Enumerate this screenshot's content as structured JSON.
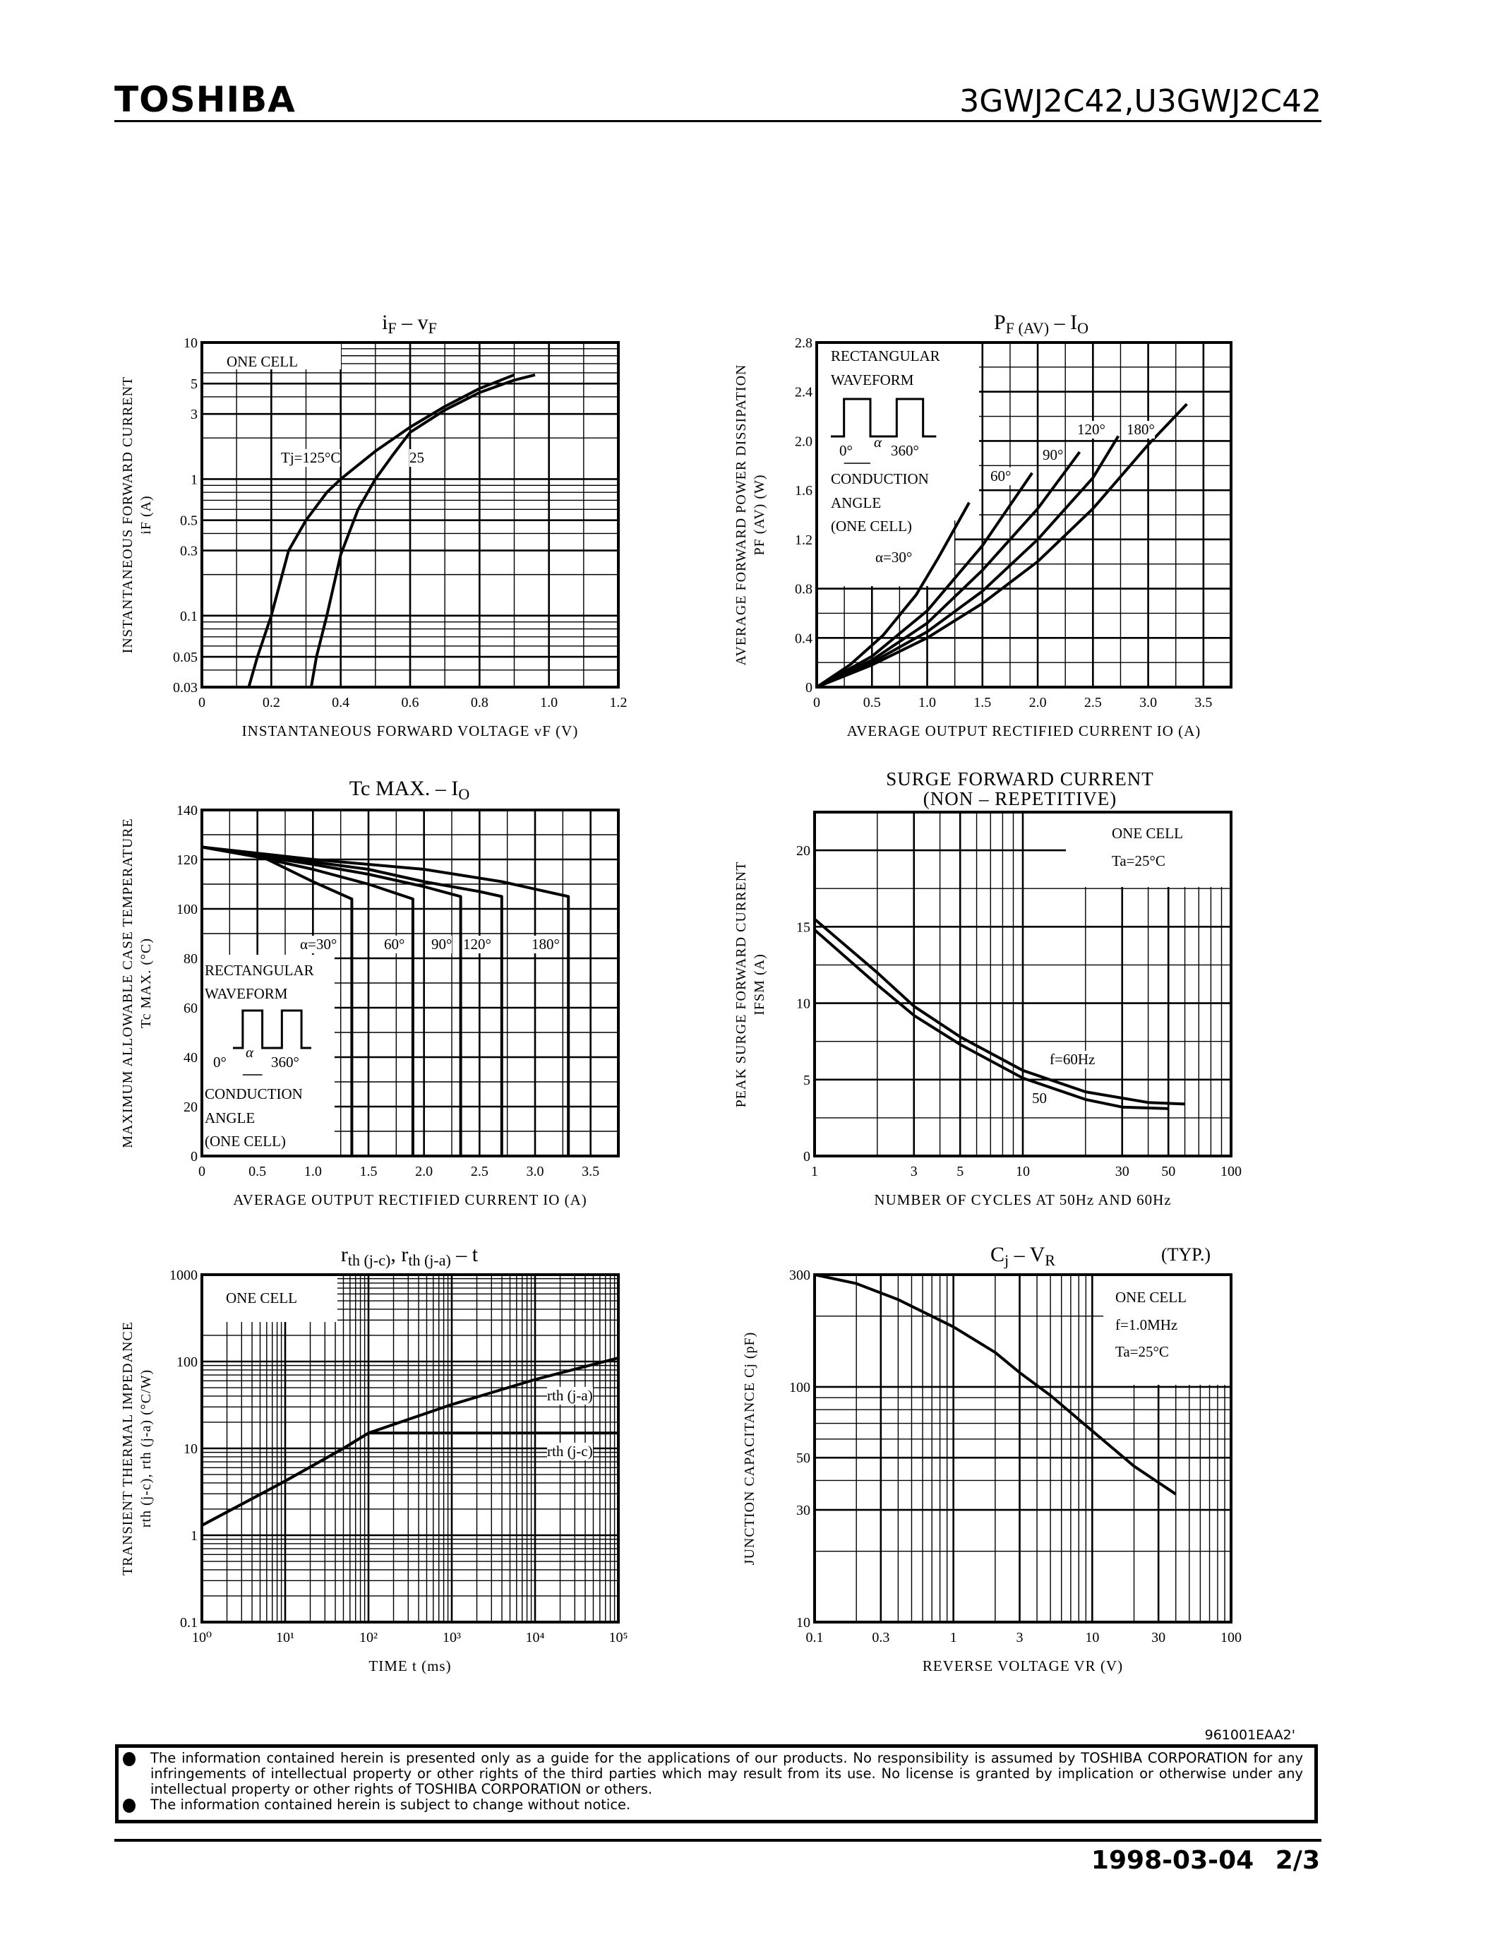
{
  "header": {
    "brand": "TOSHIBA",
    "part_number": "3GWJ2C42,U3GWJ2C42"
  },
  "footer": {
    "doc_code": "961001EAA2'",
    "disclaimer": [
      "The information contained herein is presented only as a guide for the applications of our products. No responsibility is assumed by TOSHIBA CORPORATION for any infringements of intellectual property or other rights of the third parties which may result from its use. No license is granted by implication or otherwise under any intellectual property or other rights of TOSHIBA CORPORATION or others.",
      "The information contained herein is subject to change without notice."
    ],
    "date": "1998-03-04",
    "page": "2/3"
  },
  "chart_data": [
    {
      "type": "line",
      "title_parts": [
        {
          "text": "i",
          "sub": "F"
        },
        {
          "text": " – v",
          "sub": "F"
        }
      ],
      "xlabel": "INSTANTANEOUS FORWARD VOLTAGE   vF   (V)",
      "ylabel": [
        "INSTANTANEOUS FORWARD CURRENT",
        "iF   (A)"
      ],
      "xscale": "linear",
      "yscale": "log",
      "xlim": [
        0,
        1.2
      ],
      "ylim": [
        0.03,
        10
      ],
      "xticks": [
        0,
        0.2,
        0.4,
        0.6,
        0.8,
        1.0,
        1.2
      ],
      "xtick_labels": [
        "0",
        "0.2",
        "0.4",
        "0.6",
        "0.8",
        "1.0",
        "1.2"
      ],
      "yticks": [
        0.03,
        0.05,
        0.1,
        0.3,
        0.5,
        1,
        3,
        5,
        10
      ],
      "ytick_labels": [
        "0.03",
        "0.05",
        "0.1",
        "0.3",
        "0.5",
        "1",
        "3",
        "5",
        "10"
      ],
      "grid": true,
      "annotations": [
        "ONE CELL"
      ],
      "series": [
        {
          "name": "Tj=125°C",
          "points": [
            [
              0.135,
              0.03
            ],
            [
              0.16,
              0.05
            ],
            [
              0.2,
              0.1
            ],
            [
              0.25,
              0.3
            ],
            [
              0.3,
              0.5
            ],
            [
              0.36,
              0.8
            ],
            [
              0.4,
              1
            ],
            [
              0.5,
              1.6
            ],
            [
              0.6,
              2.4
            ],
            [
              0.7,
              3.4
            ],
            [
              0.8,
              4.6
            ],
            [
              0.9,
              5.8
            ]
          ]
        },
        {
          "name": "25",
          "points": [
            [
              0.315,
              0.03
            ],
            [
              0.33,
              0.05
            ],
            [
              0.36,
              0.1
            ],
            [
              0.4,
              0.28
            ],
            [
              0.45,
              0.6
            ],
            [
              0.5,
              1
            ],
            [
              0.55,
              1.5
            ],
            [
              0.6,
              2.2
            ],
            [
              0.7,
              3.2
            ],
            [
              0.8,
              4.3
            ],
            [
              0.9,
              5.3
            ],
            [
              0.96,
              5.8
            ]
          ]
        }
      ]
    },
    {
      "type": "line",
      "title_parts": [
        {
          "text": "P",
          "sub": "F (AV)"
        },
        {
          "text": " – I",
          "sub": "O"
        }
      ],
      "xlabel": "AVERAGE OUTPUT RECTIFIED CURRENT   IO   (A)",
      "ylabel": [
        "AVERAGE FORWARD POWER DISSIPATION",
        "PF (AV)   (W)"
      ],
      "xscale": "linear",
      "yscale": "linear",
      "xlim": [
        0,
        3.75
      ],
      "ylim": [
        0,
        2.8
      ],
      "xticks": [
        0,
        0.5,
        1.0,
        1.5,
        2.0,
        2.5,
        3.0,
        3.5
      ],
      "xtick_labels": [
        "0",
        "0.5",
        "1.0",
        "1.5",
        "2.0",
        "2.5",
        "3.0",
        "3.5"
      ],
      "yticks": [
        0,
        0.4,
        0.8,
        1.2,
        1.6,
        2.0,
        2.4,
        2.8
      ],
      "ytick_labels": [
        "0",
        "0.4",
        "0.8",
        "1.2",
        "1.6",
        "2.0",
        "2.4",
        "2.8"
      ],
      "grid": true,
      "annotations": [
        "RECTANGULAR",
        "WAVEFORM",
        "0°",
        "α",
        "360°",
        "CONDUCTION",
        "ANGLE",
        "(ONE CELL)"
      ],
      "series": [
        {
          "name": "α=30°",
          "points": [
            [
              0,
              0
            ],
            [
              0.3,
              0.18
            ],
            [
              0.6,
              0.42
            ],
            [
              0.9,
              0.75
            ],
            [
              1.1,
              1.05
            ],
            [
              1.38,
              1.5
            ]
          ]
        },
        {
          "name": "60°",
          "points": [
            [
              0,
              0
            ],
            [
              0.5,
              0.25
            ],
            [
              1.0,
              0.62
            ],
            [
              1.5,
              1.15
            ],
            [
              1.95,
              1.74
            ]
          ]
        },
        {
          "name": "90°",
          "points": [
            [
              0,
              0
            ],
            [
              0.5,
              0.22
            ],
            [
              1.0,
              0.52
            ],
            [
              1.5,
              0.95
            ],
            [
              2.0,
              1.45
            ],
            [
              2.38,
              1.91
            ]
          ]
        },
        {
          "name": "120°",
          "points": [
            [
              0,
              0
            ],
            [
              0.5,
              0.2
            ],
            [
              1.0,
              0.45
            ],
            [
              1.5,
              0.78
            ],
            [
              2.0,
              1.2
            ],
            [
              2.5,
              1.7
            ],
            [
              2.73,
              2.04
            ]
          ]
        },
        {
          "name": "180°",
          "points": [
            [
              0,
              0
            ],
            [
              0.5,
              0.18
            ],
            [
              1.0,
              0.4
            ],
            [
              1.5,
              0.68
            ],
            [
              2.0,
              1.02
            ],
            [
              2.5,
              1.45
            ],
            [
              3.0,
              1.97
            ],
            [
              3.35,
              2.3
            ]
          ]
        }
      ]
    },
    {
      "type": "line",
      "title_parts": [
        {
          "text": "Tc MAX. – I",
          "sub": "O"
        }
      ],
      "xlabel": "AVERAGE OUTPUT RECTIFIED CURRENT   IO   (A)",
      "ylabel": [
        "MAXIMUM ALLOWABLE CASE TEMPERATURE",
        "Tc   MAX.   (°C)"
      ],
      "xscale": "linear",
      "yscale": "linear",
      "xlim": [
        0,
        3.75
      ],
      "ylim": [
        0,
        140
      ],
      "xticks": [
        0,
        0.5,
        1.0,
        1.5,
        2.0,
        2.5,
        3.0,
        3.5
      ],
      "xtick_labels": [
        "0",
        "0.5",
        "1.0",
        "1.5",
        "2.0",
        "2.5",
        "3.0",
        "3.5"
      ],
      "yticks": [
        0,
        20,
        40,
        60,
        80,
        100,
        120,
        140
      ],
      "ytick_labels": [
        "0",
        "20",
        "40",
        "60",
        "80",
        "100",
        "120",
        "140"
      ],
      "grid": true,
      "annotations": [
        "RECTANGULAR",
        "WAVEFORM",
        "0°",
        "α",
        "360°",
        "CONDUCTION",
        "ANGLE",
        "(ONE CELL)"
      ],
      "series": [
        {
          "name": "α=30°",
          "points": [
            [
              0,
              125
            ],
            [
              0.5,
              122
            ],
            [
              1.0,
              111
            ],
            [
              1.35,
              104
            ],
            [
              1.35,
              0
            ]
          ]
        },
        {
          "name": "60°",
          "points": [
            [
              0,
              125
            ],
            [
              0.5,
              121
            ],
            [
              1.0,
              116
            ],
            [
              1.5,
              110
            ],
            [
              1.9,
              104
            ],
            [
              1.9,
              0
            ]
          ]
        },
        {
          "name": "90°",
          "points": [
            [
              0,
              125
            ],
            [
              1.0,
              118
            ],
            [
              1.5,
              114
            ],
            [
              2.0,
              109
            ],
            [
              2.33,
              105
            ],
            [
              2.33,
              0
            ]
          ]
        },
        {
          "name": "120°",
          "points": [
            [
              0,
              125
            ],
            [
              1.0,
              119
            ],
            [
              1.5,
              116
            ],
            [
              2.0,
              111
            ],
            [
              2.5,
              107
            ],
            [
              2.7,
              105
            ],
            [
              2.7,
              0
            ]
          ]
        },
        {
          "name": "180°",
          "points": [
            [
              0,
              125
            ],
            [
              1.0,
              120
            ],
            [
              2.0,
              116
            ],
            [
              2.7,
              111
            ],
            [
              3.3,
              105
            ],
            [
              3.3,
              0
            ]
          ]
        }
      ]
    },
    {
      "type": "line",
      "title_lines": [
        "SURGE FORWARD CURRENT",
        "(NON – REPETITIVE)"
      ],
      "xlabel": "NUMBER OF CYCLES AT 50Hz AND 60Hz",
      "ylabel": [
        "PEAK SURGE FORWARD CURRENT",
        "IFSM   (A)"
      ],
      "xscale": "log",
      "yscale": "linear",
      "xlim": [
        1,
        100
      ],
      "ylim": [
        0,
        22.5
      ],
      "xticks": [
        1,
        3,
        5,
        10,
        30,
        50,
        100
      ],
      "xtick_labels": [
        "1",
        "3",
        "5",
        "10",
        "30",
        "50",
        "100"
      ],
      "yticks": [
        0,
        5,
        10,
        15,
        20
      ],
      "ytick_labels": [
        "0",
        "5",
        "10",
        "15",
        "20"
      ],
      "grid": true,
      "annotations": [
        "ONE CELL",
        "Ta=25°C"
      ],
      "series": [
        {
          "name": "f=60Hz",
          "points": [
            [
              1,
              15.5
            ],
            [
              2,
              12
            ],
            [
              3,
              9.8
            ],
            [
              5,
              7.8
            ],
            [
              10,
              5.6
            ],
            [
              20,
              4.2
            ],
            [
              40,
              3.5
            ],
            [
              60,
              3.4
            ]
          ]
        },
        {
          "name": "50",
          "points": [
            [
              1,
              14.8
            ],
            [
              2,
              11.2
            ],
            [
              3,
              9.2
            ],
            [
              5,
              7.3
            ],
            [
              10,
              5.1
            ],
            [
              20,
              3.7
            ],
            [
              30,
              3.2
            ],
            [
              50,
              3.1
            ]
          ]
        }
      ]
    },
    {
      "type": "line",
      "title_parts": [
        {
          "text": "r",
          "sub": "th (j-c)"
        },
        {
          "text": ",  r",
          "sub": "th (j-a)"
        },
        {
          "text": "  –  t",
          "sub": ""
        }
      ],
      "xlabel": "TIME    t    (ms)",
      "ylabel": [
        "TRANSIENT THERMAL IMPEDANCE",
        "rth (j-c),  rth (j-a)   (°C/W)"
      ],
      "xscale": "log",
      "yscale": "log",
      "xlim": [
        1,
        100000
      ],
      "ylim": [
        0.1,
        1000
      ],
      "xticks": [
        1,
        10,
        100,
        1000,
        10000,
        100000
      ],
      "xtick_labels": [
        "10⁰",
        "10¹",
        "10²",
        "10³",
        "10⁴",
        "10⁵"
      ],
      "yticks": [
        0.1,
        1,
        10,
        100,
        1000
      ],
      "ytick_labels": [
        "0.1",
        "1",
        "10",
        "100",
        "1000"
      ],
      "grid": true,
      "annotations": [
        "ONE CELL"
      ],
      "series": [
        {
          "name": "rth (j-a)",
          "points": [
            [
              1,
              1.3
            ],
            [
              10,
              4.2
            ],
            [
              50,
              10
            ],
            [
              100,
              15
            ],
            [
              1000,
              32
            ],
            [
              10000,
              62
            ],
            [
              100000,
              110
            ]
          ]
        },
        {
          "name": "rth (j-c)",
          "points": [
            [
              1,
              1.3
            ],
            [
              10,
              4.2
            ],
            [
              50,
              10
            ],
            [
              100,
              15
            ],
            [
              100000,
              15
            ]
          ]
        }
      ]
    },
    {
      "type": "line",
      "title_parts": [
        {
          "text": "C",
          "sub": "j"
        },
        {
          "text": " – V",
          "sub": "R"
        }
      ],
      "title_note": "(TYP.)",
      "xlabel": "REVERSE VOLTAGE   VR   (V)",
      "ylabel": [
        "JUNCTION CAPACITANCE   Cj   (pF)"
      ],
      "xscale": "log",
      "yscale": "log",
      "xlim": [
        0.1,
        100
      ],
      "ylim": [
        10,
        300
      ],
      "xticks": [
        0.1,
        0.3,
        1,
        3,
        10,
        30,
        100
      ],
      "xtick_labels": [
        "0.1",
        "0.3",
        "1",
        "3",
        "10",
        "30",
        "100"
      ],
      "yticks": [
        10,
        30,
        50,
        100,
        300
      ],
      "ytick_labels": [
        "10",
        "30",
        "50",
        "100",
        "300"
      ],
      "grid": true,
      "annotations": [
        "ONE CELL",
        "f=1.0MHz",
        "Ta=25°C"
      ],
      "series": [
        {
          "points": [
            [
              0.1,
              300
            ],
            [
              0.2,
              275
            ],
            [
              0.4,
              235
            ],
            [
              1,
              180
            ],
            [
              2,
              140
            ],
            [
              3,
              115
            ],
            [
              5,
              92
            ],
            [
              10,
              65
            ],
            [
              20,
              46
            ],
            [
              40,
              35
            ]
          ]
        }
      ]
    }
  ]
}
